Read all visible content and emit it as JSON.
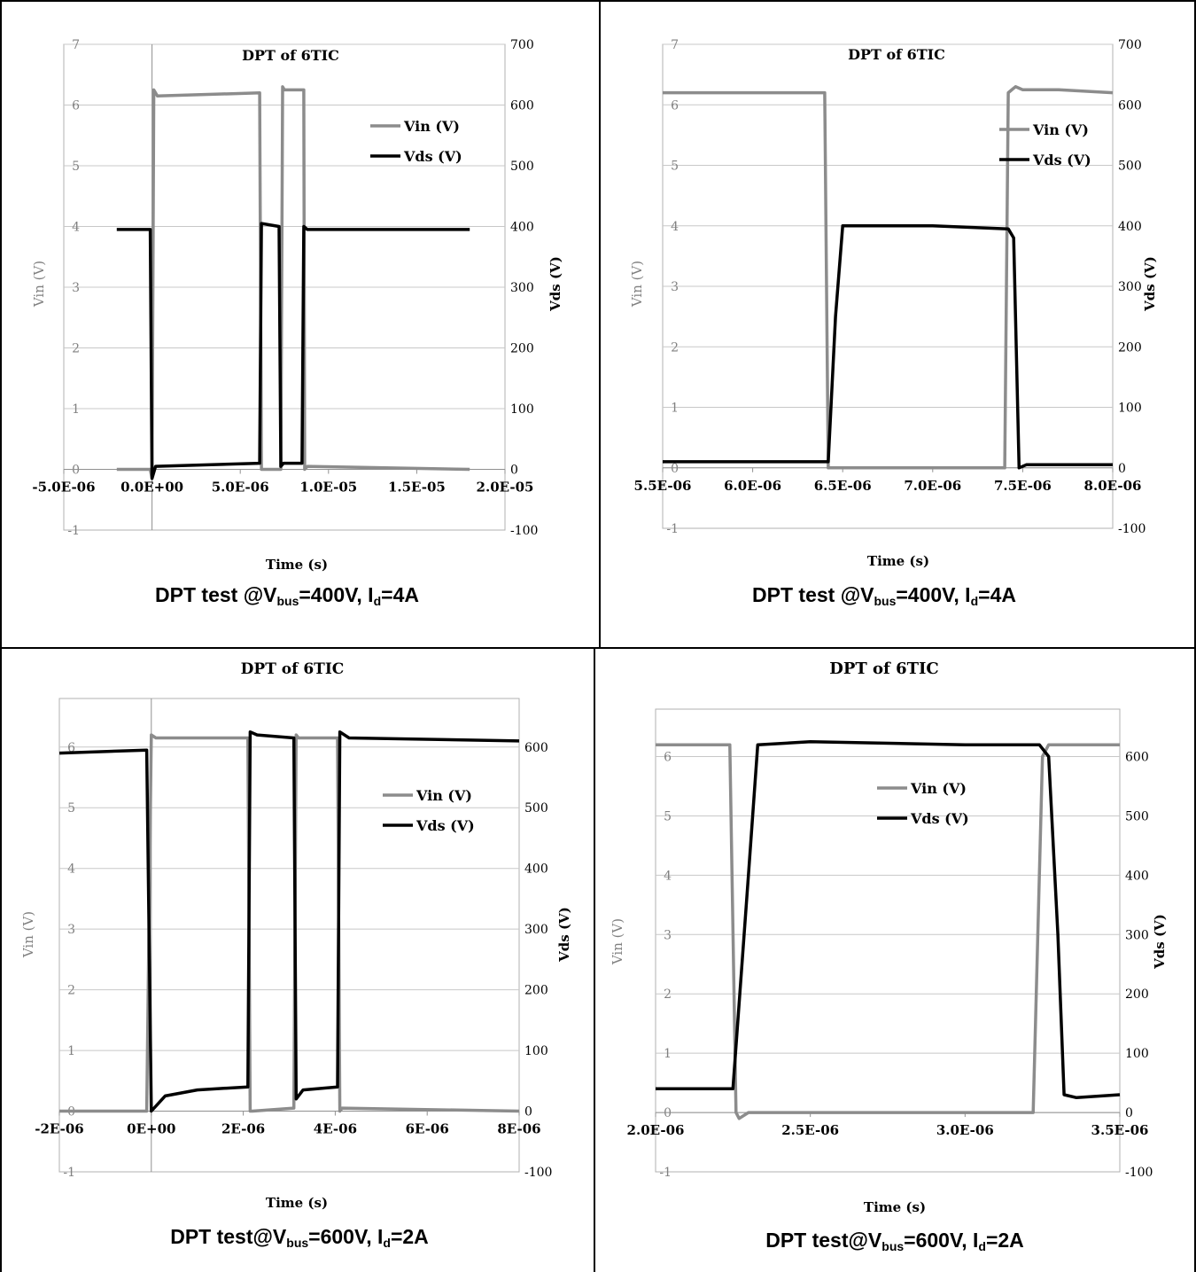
{
  "panels": [
    {
      "caption": {
        "prefix": "DPT test @V",
        "bus_sub": "bus",
        "mid": "=400V, I",
        "d_sub": "d",
        "suffix": "=4A"
      }
    },
    {
      "caption": {
        "prefix": "DPT test @V",
        "bus_sub": "bus",
        "mid": "=400V, I",
        "d_sub": "d",
        "suffix": "=4A"
      }
    },
    {
      "caption": {
        "prefix": "DPT test@V",
        "bus_sub": "bus",
        "mid": "=600V, I",
        "d_sub": "d",
        "suffix": "=2A"
      }
    },
    {
      "caption": {
        "prefix": "DPT test@V",
        "bus_sub": "bus",
        "mid": "=600V, I",
        "d_sub": "d",
        "suffix": "=2A"
      }
    }
  ],
  "colors": {
    "vin": "#8c8c8c",
    "vds": "#000000",
    "grid": "#c8c8c8",
    "axis_left": "#808080"
  },
  "chart_data": [
    {
      "type": "line",
      "title": "DPT of 6TIC",
      "xlabel": "Time (s)",
      "ylabel": "Vin (V)",
      "y2label": "Vds (V)",
      "xlim": [
        -5e-06,
        2e-05
      ],
      "ylim": [
        -1,
        7
      ],
      "y2lim": [
        -100,
        700
      ],
      "x_ticks": [
        "-5.0E-06",
        "0.0E+00",
        "5.0E-06",
        "1.0E-05",
        "1.5E-05",
        "2.0E-05"
      ],
      "y_ticks": [
        "-1",
        "0",
        "1",
        "2",
        "3",
        "4",
        "5",
        "6",
        "7"
      ],
      "y2_ticks": [
        "-100",
        "0",
        "100",
        "200",
        "300",
        "400",
        "500",
        "600",
        "700"
      ],
      "legend": "upper-right",
      "series": [
        {
          "name": "Vin (V)",
          "axis": "left",
          "x": [
            -2e-06,
            -1e-07,
            0,
            1e-07,
            3e-07,
            6.1e-06,
            6.2e-06,
            6.4e-06,
            7.3e-06,
            7.4e-06,
            7.5e-06,
            8.6e-06,
            8.65e-06,
            8.8e-06,
            1.8e-05
          ],
          "y": [
            0,
            0,
            -0.15,
            6.25,
            6.15,
            6.2,
            0,
            0,
            0,
            6.3,
            6.25,
            6.25,
            0,
            0.05,
            0
          ]
        },
        {
          "name": "Vds (V)",
          "axis": "right",
          "x": [
            -2e-06,
            -1e-07,
            0,
            2e-07,
            6.1e-06,
            6.2e-06,
            7.2e-06,
            7.3e-06,
            7.45e-06,
            8.5e-06,
            8.6e-06,
            8.8e-06,
            1.8e-05
          ],
          "y": [
            395,
            395,
            -15,
            5,
            10,
            405,
            400,
            5,
            10,
            10,
            400,
            395,
            395
          ]
        }
      ]
    },
    {
      "type": "line",
      "title": "DPT of 6TIC",
      "xlabel": "Time (s)",
      "ylabel": "Vin (V)",
      "y2label": "Vds (V)",
      "xlim": [
        5.5e-06,
        8e-06
      ],
      "ylim": [
        -1,
        7
      ],
      "y2lim": [
        -100,
        700
      ],
      "x_ticks": [
        "5.5E-06",
        "6.0E-06",
        "6.5E-06",
        "7.0E-06",
        "7.5E-06",
        "8.0E-06"
      ],
      "y_ticks": [
        "-1",
        "0",
        "1",
        "2",
        "3",
        "4",
        "5",
        "6",
        "7"
      ],
      "y2_ticks": [
        "-100",
        "0",
        "100",
        "200",
        "300",
        "400",
        "500",
        "600",
        "700"
      ],
      "legend": "upper-right",
      "series": [
        {
          "name": "Vin (V)",
          "axis": "left",
          "x": [
            5.5e-06,
            6.4e-06,
            6.42e-06,
            6.5e-06,
            7.4e-06,
            7.42e-06,
            7.46e-06,
            7.5e-06,
            7.7e-06,
            8e-06
          ],
          "y": [
            6.2,
            6.2,
            0,
            0,
            0,
            6.2,
            6.3,
            6.25,
            6.25,
            6.2
          ]
        },
        {
          "name": "Vds (V)",
          "axis": "right",
          "x": [
            5.5e-06,
            6.42e-06,
            6.46e-06,
            6.5e-06,
            7e-06,
            7.42e-06,
            7.45e-06,
            7.48e-06,
            7.52e-06,
            8e-06
          ],
          "y": [
            10,
            10,
            250,
            400,
            400,
            395,
            380,
            0,
            5,
            5
          ]
        }
      ]
    },
    {
      "type": "line",
      "title": "DPT of 6TIC",
      "xlabel": "Time (s)",
      "ylabel": "Vin (V)",
      "y2label": "Vds (V)",
      "xlim": [
        -2e-06,
        8e-06
      ],
      "ylim": [
        -1,
        6.8
      ],
      "y2lim": [
        -100,
        680
      ],
      "x_ticks": [
        "-2E-06",
        "0E+00",
        "2E-06",
        "4E-06",
        "6E-06",
        "8E-06"
      ],
      "y_ticks": [
        "-1",
        "0",
        "1",
        "2",
        "3",
        "4",
        "5",
        "6"
      ],
      "y2_ticks": [
        "-100",
        "0",
        "100",
        "200",
        "300",
        "400",
        "500",
        "600"
      ],
      "legend": "center-right",
      "series": [
        {
          "name": "Vin (V)",
          "axis": "left",
          "x": [
            -2e-06,
            -1e-07,
            0,
            1e-07,
            2.1e-06,
            2.15e-06,
            2.2e-06,
            3.1e-06,
            3.15e-06,
            3.2e-06,
            4.05e-06,
            4.1e-06,
            4.15e-06,
            8e-06
          ],
          "y": [
            0,
            0,
            6.2,
            6.15,
            6.15,
            0,
            0,
            0.05,
            6.2,
            6.15,
            6.15,
            0,
            0.05,
            0
          ]
        },
        {
          "name": "Vds (V)",
          "axis": "right",
          "x": [
            -2e-06,
            -1e-07,
            0,
            3e-07,
            1e-06,
            2.1e-06,
            2.15e-06,
            2.3e-06,
            3.1e-06,
            3.15e-06,
            3.3e-06,
            4.05e-06,
            4.1e-06,
            4.3e-06,
            8e-06
          ],
          "y": [
            590,
            595,
            0,
            25,
            35,
            40,
            625,
            620,
            615,
            20,
            35,
            40,
            625,
            615,
            610
          ]
        }
      ]
    },
    {
      "type": "line",
      "title": "DPT of 6TIC",
      "xlabel": "Time (s)",
      "ylabel": "Vin (V)",
      "y2label": "Vds (V)",
      "xlim": [
        2e-06,
        3.5e-06
      ],
      "ylim": [
        -1,
        6.8
      ],
      "y2lim": [
        -100,
        680
      ],
      "x_ticks": [
        "2.0E-06",
        "2.5E-06",
        "3.0E-06",
        "3.5E-06"
      ],
      "y_ticks": [
        "-1",
        "0",
        "1",
        "2",
        "3",
        "4",
        "5",
        "6"
      ],
      "y2_ticks": [
        "-100",
        "0",
        "100",
        "200",
        "300",
        "400",
        "500",
        "600"
      ],
      "legend": "upper-center",
      "series": [
        {
          "name": "Vin (V)",
          "axis": "left",
          "x": [
            2e-06,
            2.24e-06,
            2.26e-06,
            2.27e-06,
            2.3e-06,
            3e-06,
            3.22e-06,
            3.25e-06,
            3.27e-06,
            3.3e-06,
            3.5e-06
          ],
          "y": [
            6.2,
            6.2,
            0,
            -0.1,
            0,
            0,
            0,
            6.0,
            6.2,
            6.2,
            6.2
          ]
        },
        {
          "name": "Vds (V)",
          "axis": "right",
          "x": [
            2e-06,
            2.25e-06,
            2.3e-06,
            2.33e-06,
            2.5e-06,
            3e-06,
            3.24e-06,
            3.27e-06,
            3.3e-06,
            3.32e-06,
            3.36e-06,
            3.5e-06
          ],
          "y": [
            40,
            40,
            400,
            620,
            625,
            620,
            620,
            600,
            300,
            30,
            25,
            30
          ]
        }
      ]
    }
  ]
}
